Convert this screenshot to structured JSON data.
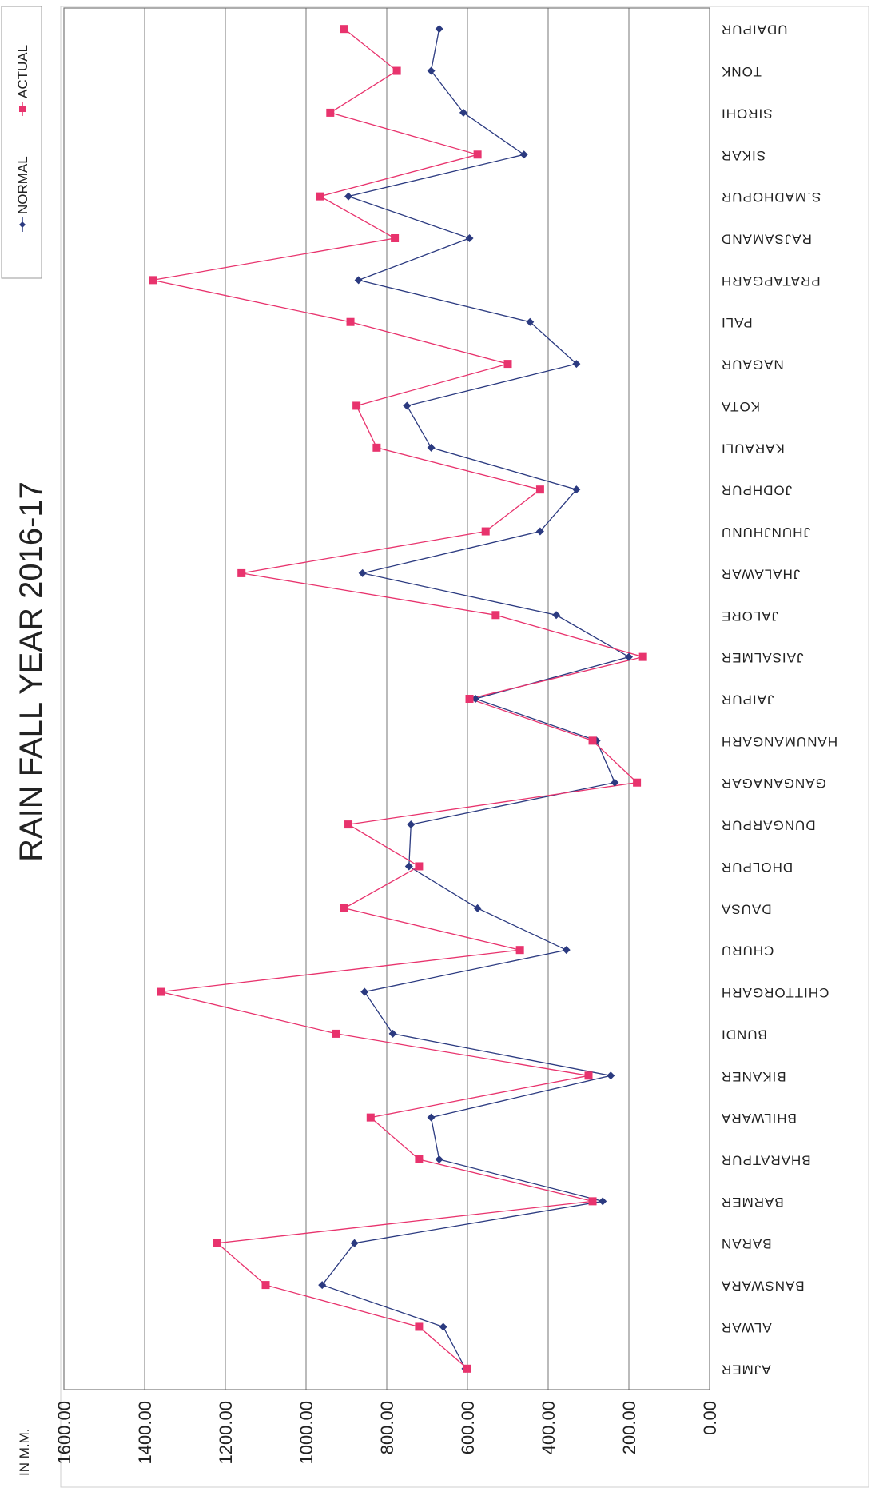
{
  "chart_data": {
    "type": "line",
    "title": "RAIN  FALL YEAR  2016-17",
    "unit_label": "IN M.M.",
    "ylim": [
      0,
      1600
    ],
    "y_ticks": [
      "0.00",
      "200.00",
      "400.00",
      "600.00",
      "800.00",
      "1000.00",
      "1200.00",
      "1400.00",
      "1600.00"
    ],
    "grid": true,
    "legend_position": "top-right",
    "categories": [
      "AJMER",
      "ALWAR",
      "BANSWARA",
      "BARAN",
      "BARMER",
      "BHARATPUR",
      "BHILWARA",
      "BIKANER",
      "BUNDI",
      "CHITTORGARH",
      "CHURU",
      "DAUSA",
      "DHOLPUR",
      "DUNGARPUR",
      "GANGANAGAR",
      "HANUMANGARH",
      "JAIPUR",
      "JAISALMER",
      "JALORE",
      "JHALAWAR",
      "JHUNJHUNU",
      "JODHPUR",
      "KARAULI",
      "KOTA",
      "NAGAUR",
      "PALI",
      "PRATAPGARH",
      "RAJSAMAND",
      "S.MADHOPUR",
      "SIKAR",
      "SIROHI",
      "TONK",
      "UDAIPUR"
    ],
    "series": [
      {
        "name": "NORMAL",
        "color": "#2b3a80",
        "marker": "diamond",
        "values": [
          605,
          660,
          960,
          880,
          265,
          670,
          690,
          245,
          785,
          855,
          355,
          575,
          745,
          740,
          235,
          280,
          580,
          200,
          380,
          860,
          420,
          330,
          690,
          750,
          330,
          445,
          870,
          595,
          895,
          460,
          610,
          690,
          670
        ]
      },
      {
        "name": "ACTUAL",
        "color": "#e8336d",
        "marker": "square",
        "values": [
          600,
          720,
          1100,
          1220,
          290,
          720,
          840,
          300,
          925,
          1360,
          470,
          905,
          720,
          895,
          180,
          290,
          595,
          165,
          530,
          1160,
          555,
          420,
          825,
          875,
          500,
          890,
          1380,
          780,
          965,
          575,
          940,
          775,
          905
        ]
      }
    ]
  }
}
